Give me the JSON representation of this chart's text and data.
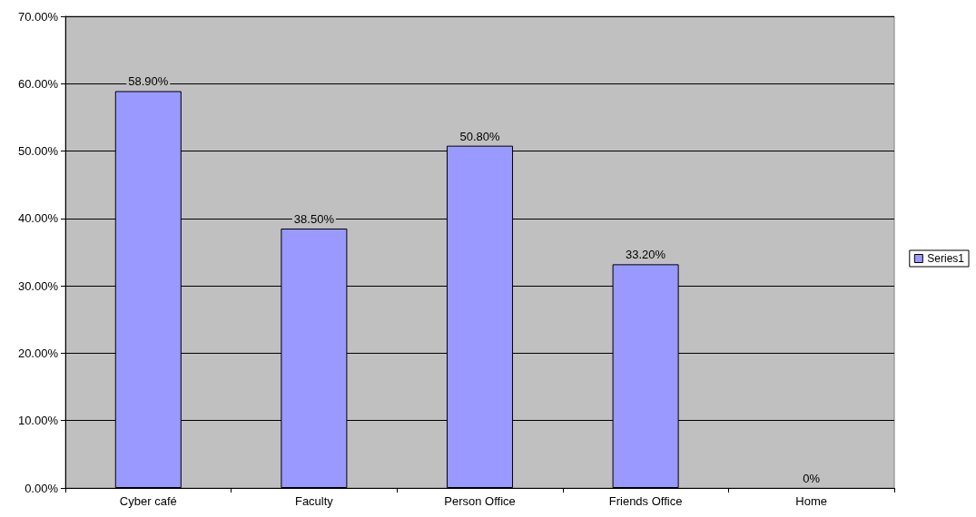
{
  "chart_data": {
    "type": "bar",
    "categories": [
      "Cyber café",
      "Faculty",
      "Person Office",
      "Friends Office",
      "Home"
    ],
    "series": [
      {
        "name": "Series1",
        "color": "#9999ff",
        "values": [
          58.9,
          38.5,
          50.8,
          33.2,
          0
        ],
        "value_labels": [
          "58.90%",
          "38.50%",
          "50.80%",
          "33.20%",
          "0%"
        ]
      }
    ],
    "ylim": [
      0,
      70
    ],
    "yticks": [
      {
        "value": 0,
        "label": "0.00%"
      },
      {
        "value": 10,
        "label": "10.00%"
      },
      {
        "value": 20,
        "label": "20.00%"
      },
      {
        "value": 30,
        "label": "30.00%"
      },
      {
        "value": 40,
        "label": "40.00%"
      },
      {
        "value": 50,
        "label": "50.00%"
      },
      {
        "value": 60,
        "label": "60.00%"
      },
      {
        "value": 70,
        "label": "70.00%"
      }
    ],
    "grid": "y",
    "legend": "right"
  }
}
